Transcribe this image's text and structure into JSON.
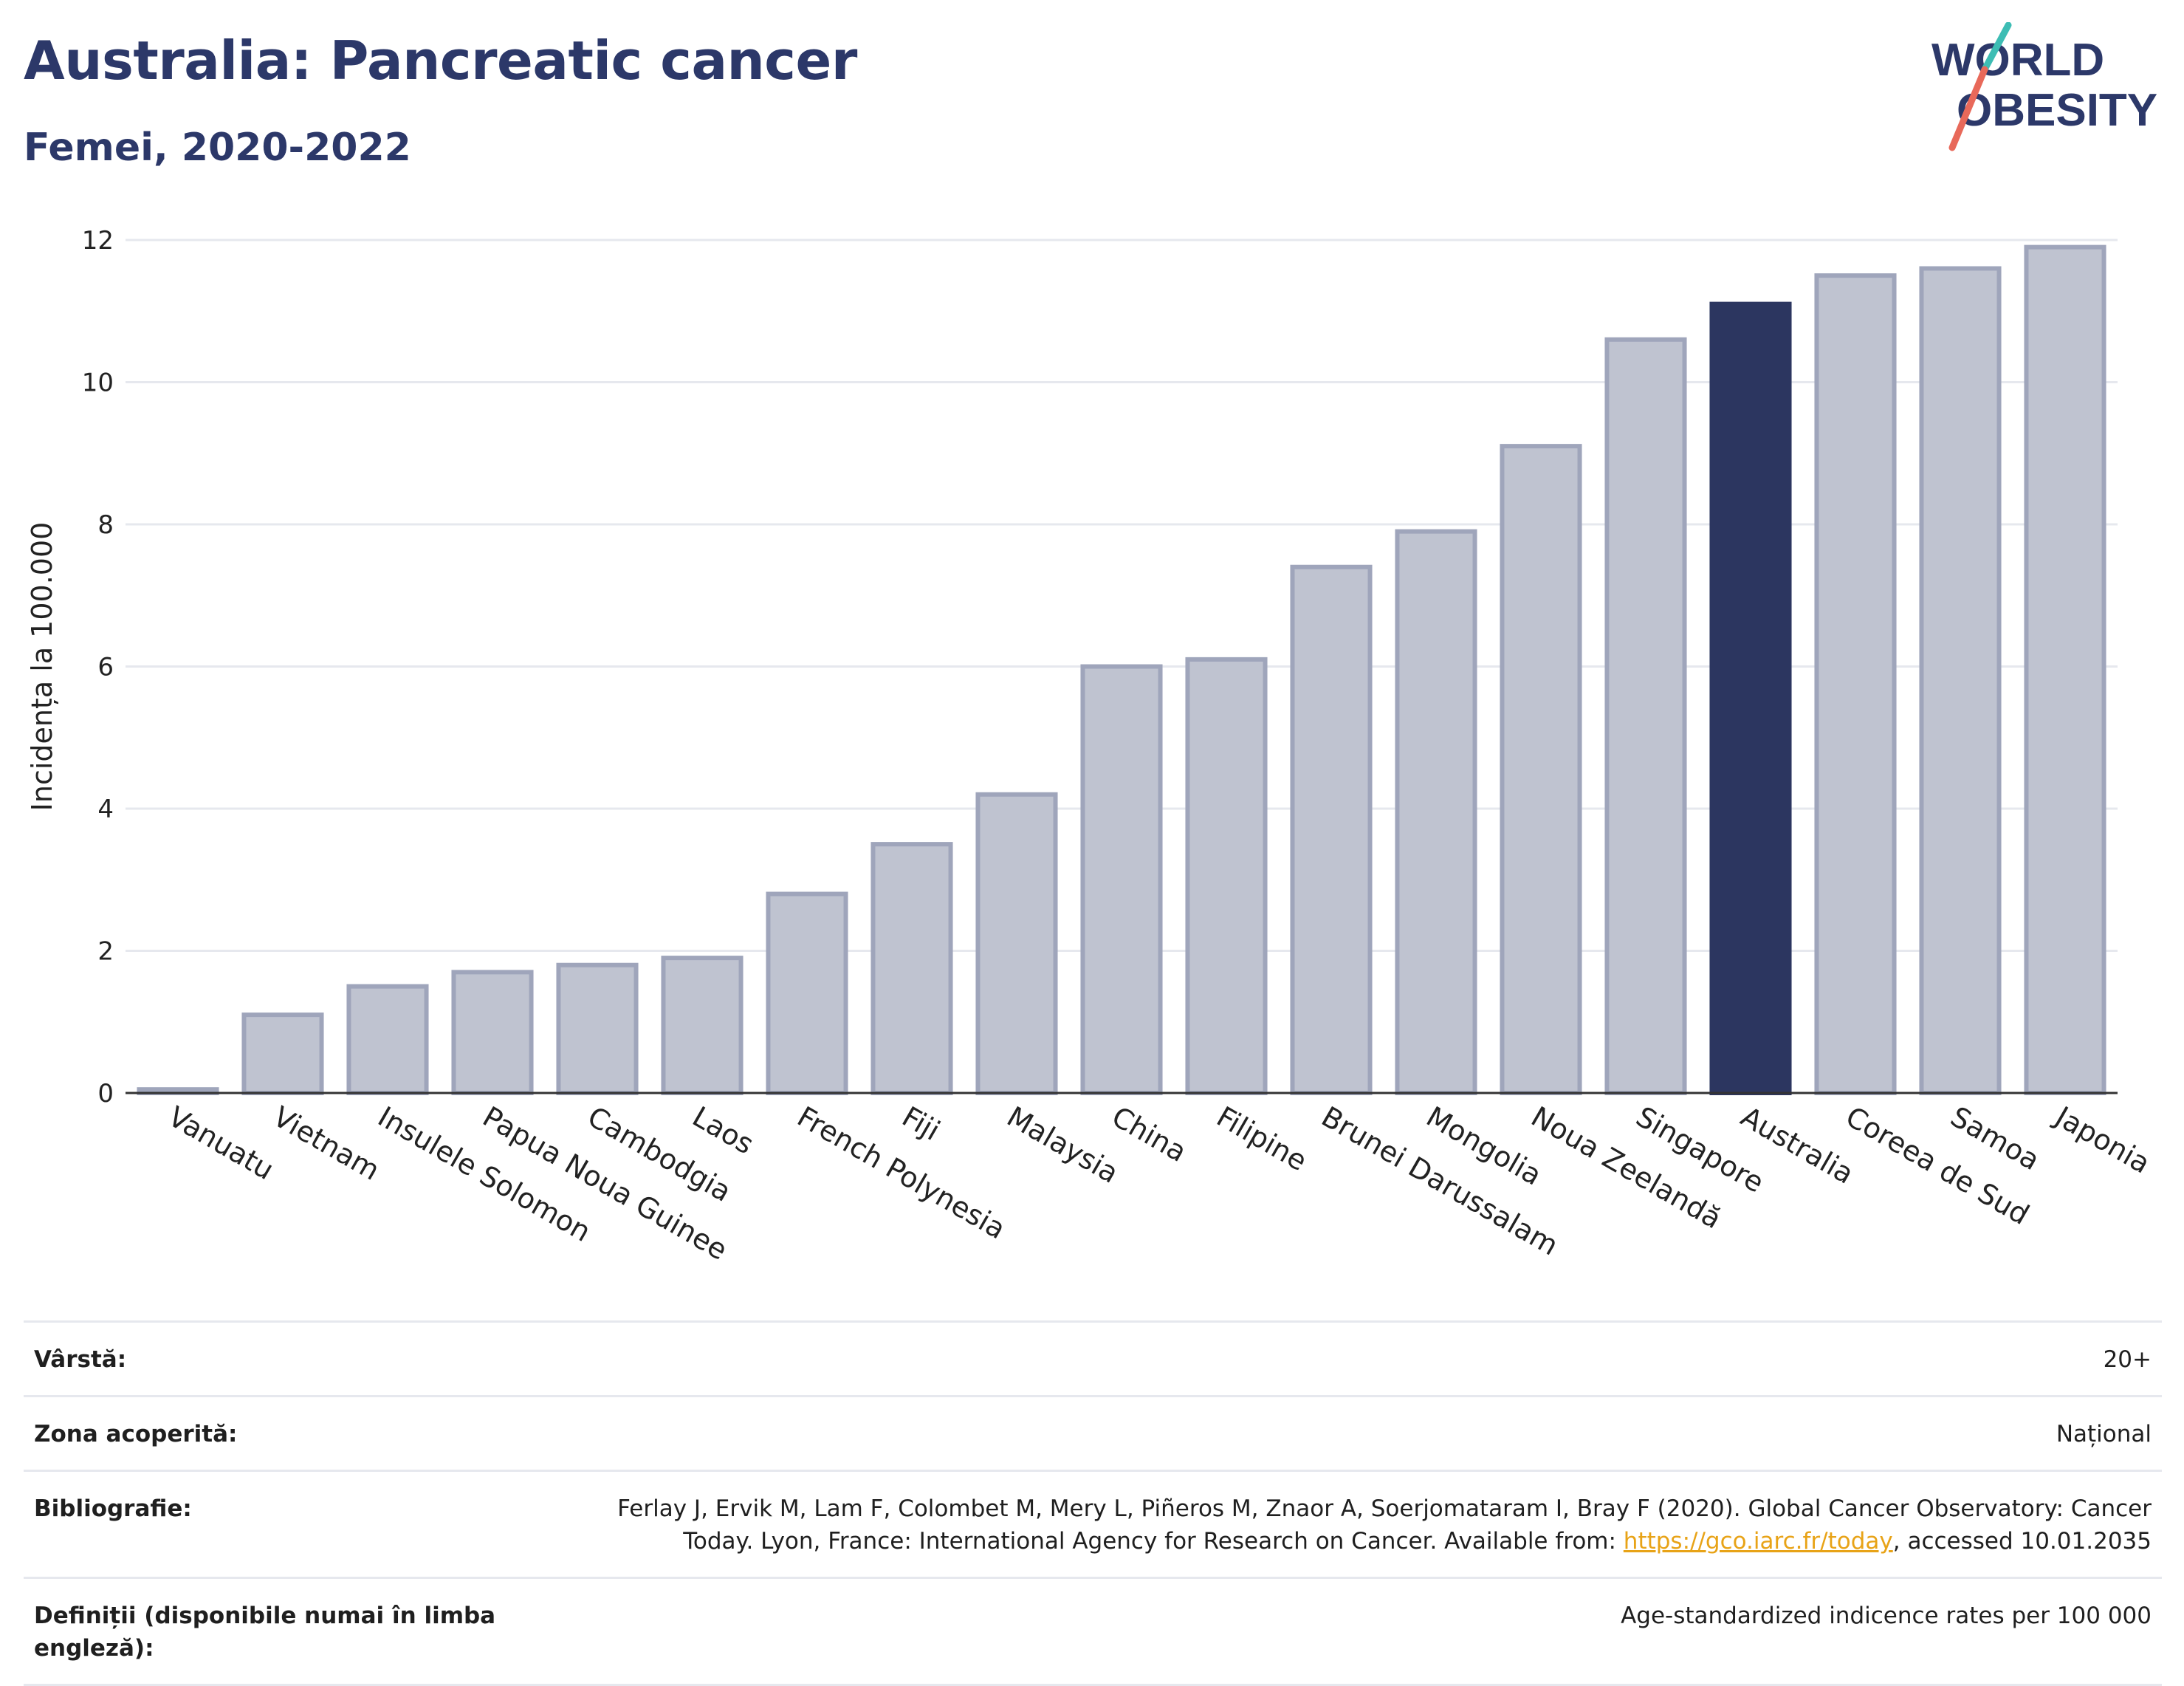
{
  "header": {
    "title": "Australia: Pancreatic cancer",
    "subtitle": "Femei, 2020-2022"
  },
  "logo": {
    "line1": "WORLD",
    "line2": "OBESITY",
    "accent_teal": "#3dbdb4",
    "accent_coral": "#e8695a",
    "text_color": "#2c3869"
  },
  "colors": {
    "highlight_bar": "#2c3660",
    "bar_fill": "#bfc3d0",
    "bar_stroke": "#9fa5bb",
    "title": "#2c3869"
  },
  "chart_data": {
    "type": "bar",
    "ylabel": "Incidența la 100.000",
    "ylim": [
      0,
      12
    ],
    "yticks": [
      0,
      2,
      4,
      6,
      8,
      10,
      12
    ],
    "grid": true,
    "categories": [
      "Vanuatu",
      "Vietnam",
      "Insulele Solomon",
      "Papua Noua Guinee",
      "Cambodgia",
      "Laos",
      "French Polynesia",
      "Fiji",
      "Malaysia",
      "China",
      "Filipine",
      "Brunei Darussalam",
      "Mongolia",
      "Noua Zeelandă",
      "Singapore",
      "Australia",
      "Coreea de Sud",
      "Samoa",
      "Japonia"
    ],
    "values": [
      0.05,
      1.1,
      1.5,
      1.7,
      1.8,
      1.9,
      2.8,
      3.5,
      4.2,
      6.0,
      6.1,
      7.4,
      7.9,
      9.1,
      10.6,
      11.1,
      11.5,
      11.6,
      11.9
    ],
    "highlight": "Australia"
  },
  "meta": {
    "age_label": "Vârstă:",
    "age_value": "20+",
    "coverage_label": "Zona acoperită:",
    "coverage_value": "Național",
    "bib_label": "Bibliografie:",
    "bib_text_1": "Ferlay J, Ervik M, Lam F, Colombet M, Mery L, Piñeros M, Znaor A, Soerjomataram I, Bray F (2020). Global Cancer Observatory: Cancer",
    "bib_text_2a": "Today. Lyon, France: International Agency for Research on Cancer. Available from: ",
    "bib_link": "https://gco.iarc.fr/today",
    "bib_text_2b": ", accessed 10.01.2035",
    "def_label": "Definiții (disponibile numai în limba engleză):",
    "def_value": "Age-standardized indicence rates per 100 000"
  }
}
